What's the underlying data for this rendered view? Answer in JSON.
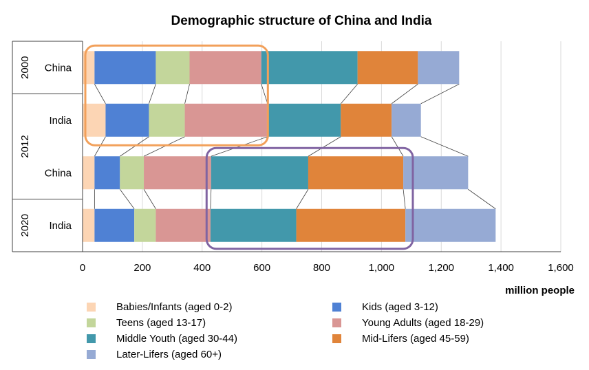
{
  "chart_data": {
    "type": "bar",
    "orientation": "horizontal",
    "stacked": true,
    "title": "Demographic structure of China and India",
    "xlabel": "million people",
    "ylabel": "",
    "xlim": [
      0,
      1600
    ],
    "xticks": [
      0,
      200,
      400,
      600,
      800,
      1000,
      1200,
      1400,
      1600
    ],
    "xtick_labels": [
      "0",
      "200",
      "400",
      "600",
      "800",
      "1,000",
      "1,200",
      "1,400",
      "1,600"
    ],
    "grid": true,
    "legend_position": "bottom",
    "groups": [
      {
        "label": "2000",
        "rows": 1
      },
      {
        "label": "2012",
        "rows": 2
      },
      {
        "label": "2020",
        "rows": 1
      }
    ],
    "categories": [
      "China",
      "India",
      "China",
      "India"
    ],
    "series": [
      {
        "name": "Babies/Infants (aged 0-2)",
        "color": "#fcd5b4",
        "values": [
          40,
          77,
          40,
          40
        ]
      },
      {
        "name": "Kids (aged 3-12)",
        "color": "#4f81d4",
        "values": [
          205,
          145,
          85,
          133
        ]
      },
      {
        "name": "Teens (aged 13-17)",
        "color": "#c3d69b",
        "values": [
          113,
          120,
          80,
          72
        ]
      },
      {
        "name": "Young Adults (aged 18-29)",
        "color": "#d99694",
        "values": [
          240,
          277,
          225,
          183
        ]
      },
      {
        "name": "Middle Youth (aged 30-44)",
        "color": "#4298ab",
        "values": [
          322,
          245,
          325,
          287
        ]
      },
      {
        "name": "Mid-Lifers (aged 45-59)",
        "color": "#e0843a",
        "values": [
          202,
          170,
          318,
          365
        ]
      },
      {
        "name": "Later-Lifers (aged 60+)",
        "color": "#96aad4",
        "values": [
          138,
          98,
          217,
          302
        ]
      }
    ],
    "highlight_colors": [
      "#f2a05a",
      "#8064a2"
    ]
  }
}
